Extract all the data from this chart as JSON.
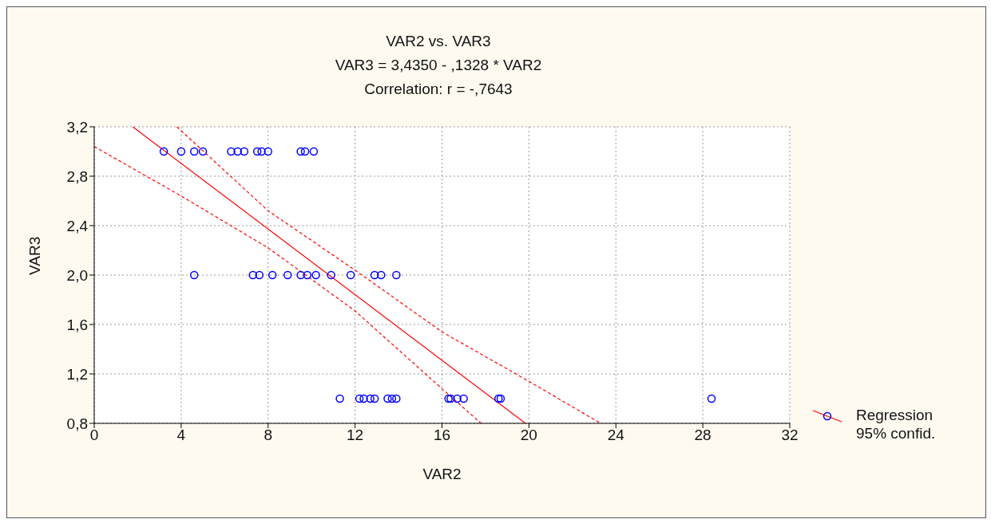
{
  "chart_data": {
    "type": "scatter",
    "title": "VAR2 vs. VAR3",
    "subtitle": "VAR3 = 3,4350 - ,1328 * VAR2",
    "annotations": [
      "Correlation: r = -,7643"
    ],
    "xlabel": "VAR2",
    "ylabel": "VAR3",
    "xlim": [
      0,
      32
    ],
    "xticks": [
      0,
      4,
      8,
      12,
      16,
      20,
      24,
      28,
      32
    ],
    "ylim": [
      0.8,
      3.2
    ],
    "yticks": [
      {
        "value": 0.8,
        "label": "0,8"
      },
      {
        "value": 1.2,
        "label": "1,2"
      },
      {
        "value": 1.6,
        "label": "1,6"
      },
      {
        "value": 2.0,
        "label": "2,0"
      },
      {
        "value": 2.4,
        "label": "2,4"
      },
      {
        "value": 2.8,
        "label": "2,8"
      },
      {
        "value": 3.2,
        "label": "3,2"
      }
    ],
    "grid": true,
    "legend": "right",
    "series": [
      {
        "name": "Regression 95% confid.",
        "marker": "circle",
        "color": "#0000ff",
        "x": [
          3.2,
          4.0,
          4.6,
          5.0,
          6.3,
          6.6,
          6.9,
          7.5,
          7.7,
          8.0,
          9.5,
          9.7,
          10.1,
          4.6,
          7.3,
          7.6,
          8.2,
          8.9,
          9.5,
          9.8,
          10.2,
          10.9,
          11.8,
          12.9,
          13.2,
          13.9,
          11.3,
          12.2,
          12.4,
          12.7,
          12.9,
          13.5,
          13.7,
          13.9,
          16.3,
          16.4,
          16.7,
          17.0,
          18.6,
          18.7,
          28.4
        ],
        "values": [
          3,
          3,
          3,
          3,
          3,
          3,
          3,
          3,
          3,
          3,
          3,
          3,
          3,
          2,
          2,
          2,
          2,
          2,
          2,
          2,
          2,
          2,
          2,
          2,
          2,
          2,
          1,
          1,
          1,
          1,
          1,
          1,
          1,
          1,
          1,
          1,
          1,
          1,
          1,
          1,
          1
        ]
      },
      {
        "type": "line",
        "marker": "none",
        "color": "#ff0000",
        "line_style": "solid",
        "x": [
          1.77,
          19.84
        ],
        "values": [
          3.2,
          0.8
        ]
      },
      {
        "type": "line",
        "marker": "none",
        "color": "#ff0000",
        "line_style": "dashed",
        "x": [
          3.8,
          8,
          12,
          16,
          20,
          23.3
        ],
        "values": [
          3.2,
          2.52,
          2.04,
          1.54,
          1.14,
          0.8
        ]
      },
      {
        "type": "line",
        "marker": "none",
        "color": "#ff0000",
        "line_style": "dashed",
        "x": [
          0,
          4,
          8,
          12,
          16,
          17.8
        ],
        "values": [
          3.04,
          2.64,
          2.22,
          1.71,
          1.08,
          0.8
        ]
      }
    ]
  }
}
